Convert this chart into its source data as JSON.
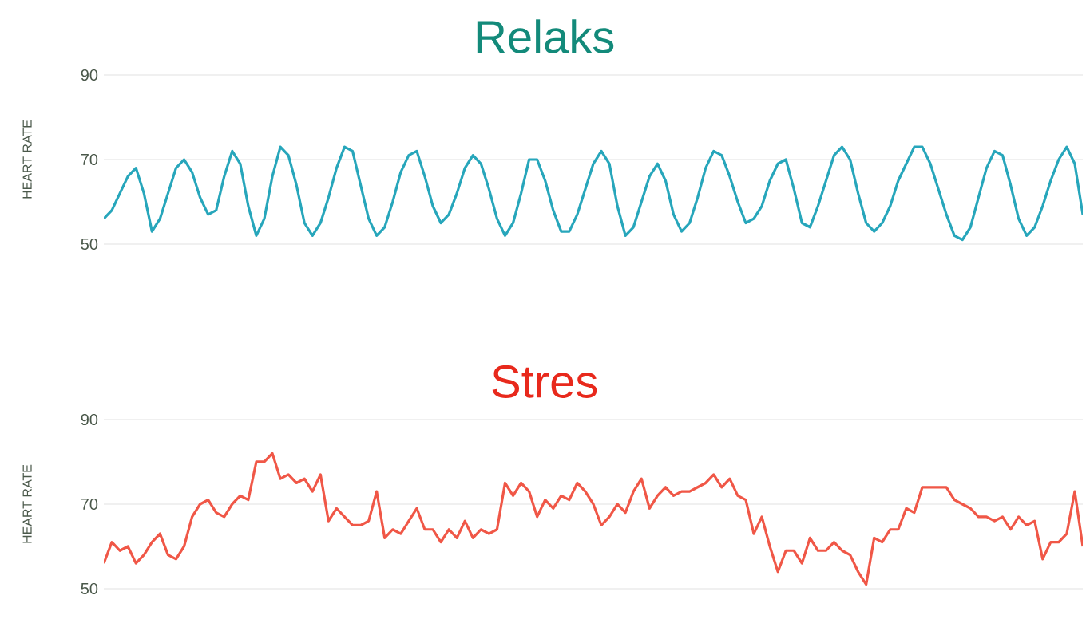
{
  "chart_data": [
    {
      "type": "line",
      "title": "Relaks",
      "ylabel": "HEART RATE",
      "color": "#27a6bb",
      "ylim": [
        50,
        90
      ],
      "yticks": [
        50,
        70,
        90
      ],
      "grid": "y",
      "tick_labels": "y",
      "categories": [
        null,
        null,
        null,
        null,
        null,
        null,
        null,
        null,
        null,
        null,
        null,
        null,
        null,
        null,
        null,
        null,
        null,
        null,
        null,
        null,
        null,
        null,
        null,
        null,
        null,
        null,
        null,
        null,
        null,
        null,
        null,
        null,
        null,
        null,
        null,
        null,
        null,
        null,
        null,
        null,
        null,
        null,
        null,
        null,
        null,
        null,
        null,
        null,
        null,
        null,
        null,
        null,
        null,
        null,
        null,
        null,
        null,
        null,
        null,
        null,
        null,
        null,
        null,
        null,
        null,
        null,
        null,
        null,
        null,
        null,
        null,
        null,
        null,
        null,
        null,
        null,
        null,
        null,
        null,
        null,
        null,
        null,
        null,
        null,
        null,
        null,
        null,
        null,
        null,
        null,
        null,
        null,
        null,
        null,
        null,
        null,
        null,
        null,
        null,
        null,
        null,
        null,
        null,
        null,
        null,
        null,
        null,
        null,
        null,
        null,
        null,
        null,
        null,
        null,
        null,
        null,
        null,
        null,
        null,
        null,
        null,
        null,
        null
      ],
      "values": [
        56,
        58,
        62,
        66,
        68,
        62,
        53,
        56,
        62,
        68,
        70,
        67,
        61,
        57,
        58,
        66,
        72,
        69,
        59,
        52,
        56,
        66,
        73,
        71,
        64,
        55,
        52,
        55,
        61,
        68,
        73,
        72,
        64,
        56,
        52,
        54,
        60,
        67,
        71,
        72,
        66,
        59,
        55,
        57,
        62,
        68,
        71,
        69,
        63,
        56,
        52,
        55,
        62,
        70,
        70,
        65,
        58,
        53,
        53,
        57,
        63,
        69,
        72,
        69,
        59,
        52,
        54,
        60,
        66,
        69,
        65,
        57,
        53,
        55,
        61,
        68,
        72,
        71,
        66,
        60,
        55,
        56,
        59,
        65,
        69,
        70,
        63,
        55,
        54,
        59,
        65,
        71,
        73,
        70,
        62,
        55,
        53,
        55,
        59,
        65,
        69,
        73,
        73,
        69,
        63,
        57,
        52,
        51,
        54,
        61,
        68,
        72,
        71,
        64,
        56,
        52,
        54,
        59,
        65,
        70,
        73,
        69,
        57
      ]
    },
    {
      "type": "line",
      "title": "Stres",
      "ylabel": "HEART RATE",
      "color": "#f05747",
      "ylim": [
        50,
        90
      ],
      "yticks": [
        50,
        70,
        90
      ],
      "grid": "y",
      "tick_labels": "y",
      "categories": [
        null,
        null,
        null,
        null,
        null,
        null,
        null,
        null,
        null,
        null,
        null,
        null,
        null,
        null,
        null,
        null,
        null,
        null,
        null,
        null,
        null,
        null,
        null,
        null,
        null,
        null,
        null,
        null,
        null,
        null,
        null,
        null,
        null,
        null,
        null,
        null,
        null,
        null,
        null,
        null,
        null,
        null,
        null,
        null,
        null,
        null,
        null,
        null,
        null,
        null,
        null,
        null,
        null,
        null,
        null,
        null,
        null,
        null,
        null,
        null,
        null,
        null,
        null,
        null,
        null,
        null,
        null,
        null,
        null,
        null,
        null,
        null,
        null,
        null,
        null,
        null,
        null,
        null,
        null,
        null,
        null,
        null,
        null,
        null,
        null,
        null,
        null,
        null,
        null,
        null,
        null,
        null,
        null,
        null,
        null,
        null,
        null,
        null,
        null,
        null,
        null,
        null,
        null,
        null,
        null,
        null,
        null,
        null,
        null,
        null,
        null,
        null,
        null,
        null,
        null,
        null,
        null,
        null,
        null,
        null,
        null,
        null,
        null
      ],
      "values": [
        56,
        61,
        59,
        60,
        56,
        58,
        61,
        63,
        58,
        57,
        60,
        67,
        70,
        71,
        68,
        67,
        70,
        72,
        71,
        80,
        80,
        82,
        76,
        77,
        75,
        76,
        73,
        77,
        66,
        69,
        67,
        65,
        65,
        66,
        73,
        62,
        64,
        63,
        66,
        69,
        64,
        64,
        61,
        64,
        62,
        66,
        62,
        64,
        63,
        64,
        75,
        72,
        75,
        73,
        67,
        71,
        69,
        72,
        71,
        75,
        73,
        70,
        65,
        67,
        70,
        68,
        73,
        76,
        69,
        72,
        74,
        72,
        73,
        73,
        74,
        75,
        77,
        74,
        76,
        72,
        71,
        63,
        67,
        60,
        54,
        59,
        59,
        56,
        62,
        59,
        59,
        61,
        59,
        58,
        54,
        51,
        62,
        61,
        64,
        64,
        69,
        68,
        74,
        74,
        74,
        74,
        71,
        70,
        69,
        67,
        67,
        66,
        67,
        64,
        67,
        65,
        66,
        57,
        61,
        61,
        63,
        73,
        60
      ]
    }
  ]
}
